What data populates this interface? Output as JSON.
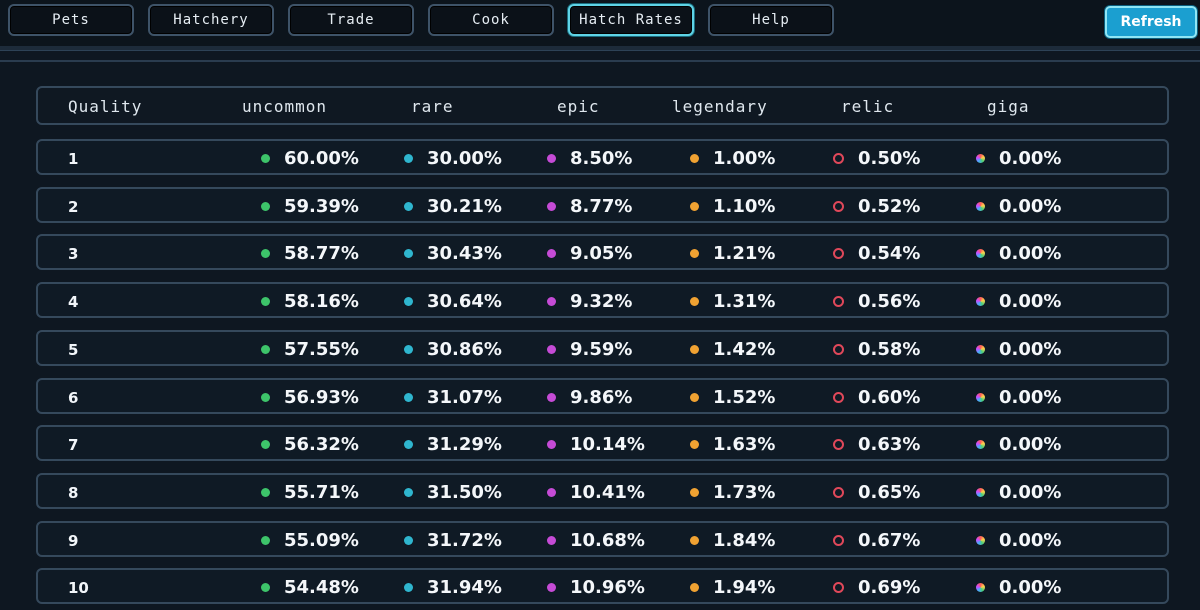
{
  "nav": {
    "tabs": [
      {
        "label": "Pets",
        "active": false
      },
      {
        "label": "Hatchery",
        "active": false
      },
      {
        "label": "Trade",
        "active": false
      },
      {
        "label": "Cook",
        "active": false
      },
      {
        "label": "Hatch Rates",
        "active": true
      },
      {
        "label": "Help",
        "active": false
      }
    ],
    "refresh_label": "Refresh"
  },
  "table": {
    "headers": [
      "Quality",
      "uncommon",
      "rare",
      "epic",
      "legendary",
      "relic",
      "giga"
    ],
    "rows": [
      {
        "quality": "1",
        "uncommon": "60.00%",
        "rare": "30.00%",
        "epic": "8.50%",
        "legendary": "1.00%",
        "relic": "0.50%",
        "giga": "0.00%"
      },
      {
        "quality": "2",
        "uncommon": "59.39%",
        "rare": "30.21%",
        "epic": "8.77%",
        "legendary": "1.10%",
        "relic": "0.52%",
        "giga": "0.00%"
      },
      {
        "quality": "3",
        "uncommon": "58.77%",
        "rare": "30.43%",
        "epic": "9.05%",
        "legendary": "1.21%",
        "relic": "0.54%",
        "giga": "0.00%"
      },
      {
        "quality": "4",
        "uncommon": "58.16%",
        "rare": "30.64%",
        "epic": "9.32%",
        "legendary": "1.31%",
        "relic": "0.56%",
        "giga": "0.00%"
      },
      {
        "quality": "5",
        "uncommon": "57.55%",
        "rare": "30.86%",
        "epic": "9.59%",
        "legendary": "1.42%",
        "relic": "0.58%",
        "giga": "0.00%"
      },
      {
        "quality": "6",
        "uncommon": "56.93%",
        "rare": "31.07%",
        "epic": "9.86%",
        "legendary": "1.52%",
        "relic": "0.60%",
        "giga": "0.00%"
      },
      {
        "quality": "7",
        "uncommon": "56.32%",
        "rare": "31.29%",
        "epic": "10.14%",
        "legendary": "1.63%",
        "relic": "0.63%",
        "giga": "0.00%"
      },
      {
        "quality": "8",
        "uncommon": "55.71%",
        "rare": "31.50%",
        "epic": "10.41%",
        "legendary": "1.73%",
        "relic": "0.65%",
        "giga": "0.00%"
      },
      {
        "quality": "9",
        "uncommon": "55.09%",
        "rare": "31.72%",
        "epic": "10.68%",
        "legendary": "1.84%",
        "relic": "0.67%",
        "giga": "0.00%"
      },
      {
        "quality": "10",
        "uncommon": "54.48%",
        "rare": "31.94%",
        "epic": "10.96%",
        "legendary": "1.94%",
        "relic": "0.69%",
        "giga": "0.00%"
      }
    ]
  },
  "colors": {
    "uncommon": "#3dc46a",
    "rare": "#2fb6cf",
    "epic": "#c54bd6",
    "legendary": "#f0a232",
    "relic": "#e0485a",
    "giga": "multicolor",
    "accent": "#5fd3e6",
    "refresh": "#1b9fd0"
  }
}
